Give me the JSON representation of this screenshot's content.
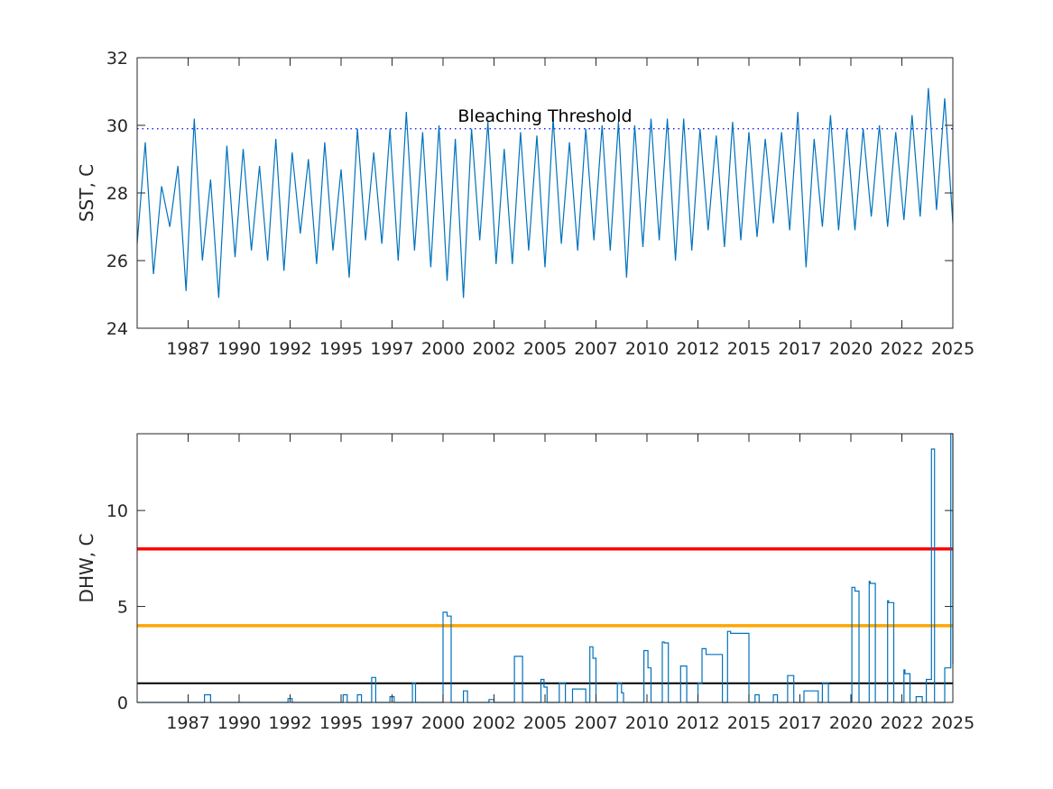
{
  "chart_data": [
    {
      "type": "line",
      "ylabel": "SST, C",
      "xlabel": "",
      "xlim": [
        1985.0,
        2025.0
      ],
      "ylim": [
        24,
        32
      ],
      "yticks": [
        24,
        26,
        28,
        30,
        32
      ],
      "xtick_labels": [
        "1987",
        "1990",
        "1992",
        "1995",
        "1997",
        "2000",
        "2002",
        "2005",
        "2007",
        "2010",
        "2012",
        "2015",
        "2017",
        "2020",
        "2022",
        "2025"
      ],
      "grid": false,
      "series_color": "#0072BD",
      "threshold": {
        "value": 29.9,
        "label": "Bleaching Threshold",
        "color": "#0000FF",
        "style": "dotted"
      },
      "series": [
        {
          "x": [
            1985.0,
            1985.4,
            1985.8,
            1986.2,
            1986.6,
            1987.0,
            1987.4,
            1987.8,
            1988.2,
            1988.6,
            1989.0,
            1989.4,
            1989.8,
            1990.2,
            1990.6,
            1991.0,
            1991.4,
            1991.8,
            1992.2,
            1992.6,
            1993.0,
            1993.4,
            1993.8,
            1994.2,
            1994.6,
            1995.0,
            1995.4,
            1995.8,
            1996.2,
            1996.6,
            1997.0,
            1997.4,
            1997.8,
            1998.2,
            1998.6,
            1999.0,
            1999.4,
            1999.8,
            2000.2,
            2000.6,
            2001.0,
            2001.4,
            2001.8,
            2002.2,
            2002.6,
            2003.0,
            2003.4,
            2003.8,
            2004.2,
            2004.6,
            2005.0,
            2005.4,
            2005.8,
            2006.2,
            2006.6,
            2007.0,
            2007.4,
            2007.8,
            2008.2,
            2008.6,
            2009.0,
            2009.4,
            2009.8,
            2010.2,
            2010.6,
            2011.0,
            2011.4,
            2011.8,
            2012.2,
            2012.6,
            2013.0,
            2013.4,
            2013.8,
            2014.2,
            2014.6,
            2015.0,
            2015.4,
            2015.8,
            2016.2,
            2016.6,
            2017.0,
            2017.4,
            2017.8,
            2018.2,
            2018.6,
            2019.0,
            2019.4,
            2019.8,
            2020.2,
            2020.6,
            2021.0,
            2021.4,
            2021.8,
            2022.2,
            2022.6,
            2023.0,
            2023.4,
            2023.8,
            2024.2,
            2024.6,
            2025.0
          ],
          "values": [
            26.5,
            29.5,
            25.6,
            28.2,
            27.0,
            28.8,
            25.1,
            30.2,
            26.0,
            28.4,
            24.9,
            29.4,
            26.1,
            29.3,
            26.3,
            28.8,
            26.0,
            29.6,
            25.7,
            29.2,
            26.8,
            29.0,
            25.9,
            29.5,
            26.3,
            28.7,
            25.5,
            29.9,
            26.6,
            29.2,
            26.5,
            29.9,
            26.0,
            30.4,
            26.3,
            29.8,
            25.8,
            30.0,
            25.4,
            29.6,
            24.9,
            29.9,
            26.6,
            30.1,
            25.9,
            29.3,
            25.9,
            29.8,
            26.3,
            29.7,
            25.8,
            30.2,
            26.5,
            29.5,
            26.3,
            29.9,
            26.6,
            30.0,
            26.3,
            30.1,
            25.5,
            30.0,
            26.4,
            30.2,
            26.6,
            30.2,
            26.0,
            30.2,
            26.3,
            29.9,
            26.9,
            29.7,
            26.4,
            30.1,
            26.6,
            29.8,
            26.7,
            29.6,
            27.1,
            29.8,
            26.9,
            30.4,
            25.8,
            29.6,
            27.0,
            30.3,
            26.9,
            29.9,
            26.9,
            29.9,
            27.3,
            30.0,
            27.0,
            29.8,
            27.2,
            30.3,
            27.3,
            31.1,
            27.5,
            30.8,
            27.1
          ]
        }
      ]
    },
    {
      "type": "line",
      "ylabel": "DHW, C",
      "xlabel": "",
      "xlim": [
        1985.0,
        2025.0
      ],
      "ylim": [
        0,
        14
      ],
      "yticks": [
        0,
        5,
        10
      ],
      "xtick_labels": [
        "1987",
        "1990",
        "1992",
        "1995",
        "1997",
        "2000",
        "2002",
        "2005",
        "2007",
        "2010",
        "2012",
        "2015",
        "2017",
        "2020",
        "2022",
        "2025"
      ],
      "grid": false,
      "series_color": "#0072BD",
      "reference_lines": [
        {
          "value": 8,
          "color": "#FF0000"
        },
        {
          "value": 4,
          "color": "#FFA500"
        },
        {
          "value": 1,
          "color": "#000000"
        }
      ],
      "series": [
        {
          "x": [
            1985.0,
            1988.2,
            1988.3,
            1988.5,
            1988.6,
            1992.3,
            1992.4,
            1992.6,
            1995.0,
            1995.1,
            1995.3,
            1995.7,
            1995.8,
            1996.0,
            1996.3,
            1996.5,
            1996.7,
            1997.3,
            1997.4,
            1997.6,
            1998.4,
            1998.5,
            1998.65,
            1998.85,
            1999.0,
            1999.9,
            2000.0,
            2000.2,
            2000.4,
            2000.9,
            2001.0,
            2001.2,
            2002.2,
            2002.25,
            2002.5,
            2002.55,
            2003.4,
            2003.5,
            2003.75,
            2003.9,
            2004.7,
            2004.8,
            2004.95,
            2005.1,
            2005.6,
            2005.7,
            2005.8,
            2006.0,
            2006.2,
            2006.35,
            2007.0,
            2007.1,
            2007.2,
            2007.35,
            2007.5,
            2008.5,
            2008.55,
            2008.75,
            2008.85,
            2009.8,
            2009.85,
            2010.05,
            2010.2,
            2010.7,
            2010.75,
            2010.85,
            2011.05,
            2011.3,
            2011.65,
            2011.7,
            2011.95,
            2012.1,
            2012.5,
            2012.7,
            2012.9,
            2013.7,
            2013.75,
            2013.95,
            2014.1,
            2015.0,
            2015.1,
            2015.3,
            2015.5,
            2016.0,
            2016.2,
            2016.4,
            2016.6,
            2016.9,
            2017.0,
            2017.2,
            2017.4,
            2017.7,
            2018.4,
            2018.5,
            2018.6,
            2018.9,
            2020.0,
            2020.05,
            2020.2,
            2020.4,
            2020.55,
            2020.9,
            2020.95,
            2021.2,
            2021.4,
            2021.8,
            2021.85,
            2022.1,
            2022.3,
            2022.6,
            2022.65,
            2022.9,
            2023.1,
            2023.2,
            2023.5,
            2023.6,
            2023.7,
            2023.8,
            2023.95,
            2024.1,
            2024.5,
            2024.6,
            2024.8,
            2024.9,
            2025.0
          ],
          "values": [
            0,
            0,
            0.4,
            0.4,
            0,
            0,
            0.2,
            0,
            0,
            0.4,
            0,
            0,
            0.4,
            0,
            0,
            1.3,
            0,
            0,
            0.3,
            0,
            0,
            1.0,
            0,
            0,
            0,
            0,
            4.7,
            4.5,
            0,
            0,
            0.6,
            0,
            0,
            0.15,
            0,
            0,
            0,
            2.4,
            2.4,
            0,
            0,
            1.2,
            0.8,
            0,
            0,
            1.0,
            1.0,
            0,
            0,
            0.7,
            0,
            0,
            2.9,
            2.3,
            0,
            0,
            1.0,
            0.5,
            0,
            0,
            2.7,
            1.8,
            0,
            0,
            3.15,
            3.1,
            0,
            0,
            1.9,
            1.9,
            0,
            0,
            1.0,
            2.8,
            2.5,
            0,
            0,
            3.7,
            3.6,
            0,
            0,
            0.4,
            0,
            0,
            0.4,
            0,
            0,
            1.4,
            1.4,
            0,
            0,
            0.6,
            0,
            0,
            1.0,
            0,
            0,
            6.0,
            5.8,
            0,
            0,
            6.3,
            6.2,
            0,
            0,
            5.3,
            5.2,
            0,
            0,
            1.7,
            1.5,
            0,
            0,
            0.3,
            0,
            0,
            1.2,
            1.2,
            13.2,
            0,
            0,
            1.8,
            1.8,
            14.0,
            2.0
          ],
          "note": ""
        }
      ]
    }
  ]
}
